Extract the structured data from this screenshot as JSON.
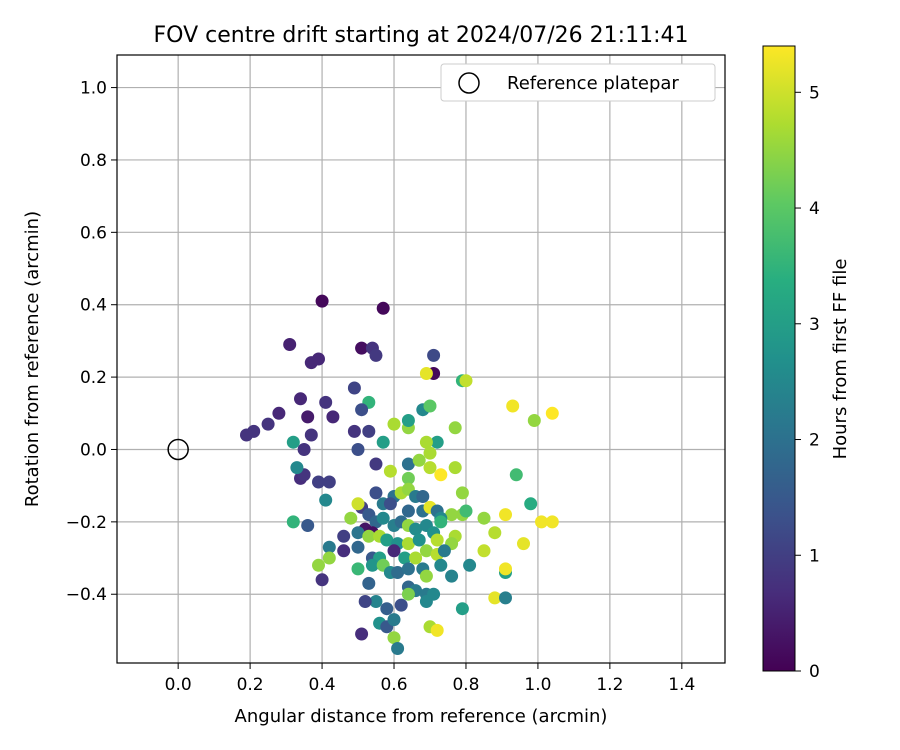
{
  "chart_data": {
    "type": "scatter",
    "title": "FOV centre drift starting at 2024/07/26 21:11:41",
    "xlabel": "Angular distance from reference (arcmin)",
    "ylabel": "Rotation from reference (arcmin)",
    "xlim": [
      -0.17,
      1.52
    ],
    "ylim": [
      -0.59,
      1.09
    ],
    "xticks": [
      0.0,
      0.2,
      0.4,
      0.6,
      0.8,
      1.0,
      1.2,
      1.4
    ],
    "xtick_labels": [
      "0.0",
      "0.2",
      "0.4",
      "0.6",
      "0.8",
      "1.0",
      "1.2",
      "1.4"
    ],
    "yticks": [
      -0.4,
      -0.2,
      0.0,
      0.2,
      0.4,
      0.6,
      0.8,
      1.0
    ],
    "ytick_labels": [
      "−0.4",
      "−0.2",
      "0.0",
      "0.2",
      "0.4",
      "0.6",
      "0.8",
      "1.0"
    ],
    "grid": true,
    "legend": {
      "placement": "top-right",
      "label": "Reference platepar"
    },
    "reference_point": {
      "x": 0.0,
      "y": 0.0
    },
    "colorbar": {
      "label": "Hours from first FF file",
      "range": [
        0,
        5.4
      ],
      "ticks": [
        0,
        1,
        2,
        3,
        4,
        5
      ],
      "tick_labels": [
        "0",
        "1",
        "2",
        "3",
        "4",
        "5"
      ],
      "colormap": "viridis"
    },
    "points": [
      [
        0.4,
        0.41,
        0.1
      ],
      [
        0.57,
        0.39,
        0.1
      ],
      [
        0.31,
        0.29,
        0.5
      ],
      [
        0.51,
        0.28,
        0.2
      ],
      [
        0.54,
        0.28,
        0.8
      ],
      [
        0.37,
        0.24,
        0.6
      ],
      [
        0.39,
        0.25,
        0.6
      ],
      [
        0.55,
        0.26,
        0.9
      ],
      [
        0.71,
        0.26,
        1.2
      ],
      [
        0.71,
        0.21,
        0.1
      ],
      [
        0.69,
        0.21,
        5.2
      ],
      [
        0.79,
        0.19,
        3.5
      ],
      [
        0.8,
        0.19,
        4.9
      ],
      [
        0.49,
        0.17,
        1.1
      ],
      [
        0.34,
        0.14,
        0.6
      ],
      [
        0.41,
        0.13,
        0.8
      ],
      [
        0.53,
        0.13,
        3.5
      ],
      [
        0.28,
        0.1,
        0.6
      ],
      [
        0.36,
        0.09,
        0.4
      ],
      [
        0.43,
        0.09,
        0.6
      ],
      [
        0.51,
        0.11,
        1.3
      ],
      [
        0.93,
        0.12,
        5.3
      ],
      [
        1.04,
        0.1,
        5.4
      ],
      [
        0.68,
        0.11,
        2.5
      ],
      [
        0.7,
        0.12,
        4.0
      ],
      [
        0.25,
        0.07,
        0.8
      ],
      [
        0.21,
        0.05,
        0.8
      ],
      [
        0.19,
        0.04,
        0.8
      ],
      [
        0.37,
        0.04,
        0.8
      ],
      [
        0.49,
        0.05,
        0.8
      ],
      [
        0.53,
        0.05,
        1.0
      ],
      [
        0.6,
        0.07,
        4.7
      ],
      [
        0.64,
        0.06,
        4.5
      ],
      [
        0.64,
        0.08,
        3.0
      ],
      [
        0.99,
        0.08,
        4.5
      ],
      [
        0.77,
        0.06,
        4.5
      ],
      [
        0.32,
        0.02,
        3.0
      ],
      [
        0.57,
        0.02,
        3.0
      ],
      [
        0.72,
        0.02,
        3.0
      ],
      [
        0.35,
        0.0,
        0.8
      ],
      [
        0.5,
        0.0,
        1.3
      ],
      [
        0.69,
        0.02,
        4.7
      ],
      [
        0.7,
        -0.01,
        4.7
      ],
      [
        0.64,
        -0.04,
        2.0
      ],
      [
        0.67,
        -0.03,
        4.5
      ],
      [
        0.34,
        -0.08,
        0.7
      ],
      [
        0.35,
        -0.07,
        0.8
      ],
      [
        0.33,
        -0.05,
        2.5
      ],
      [
        0.39,
        -0.09,
        1.0
      ],
      [
        0.42,
        -0.09,
        1.0
      ],
      [
        0.55,
        -0.04,
        0.9
      ],
      [
        0.59,
        -0.06,
        4.8
      ],
      [
        0.64,
        -0.08,
        4.2
      ],
      [
        0.7,
        -0.05,
        4.8
      ],
      [
        0.73,
        -0.07,
        5.4
      ],
      [
        0.77,
        -0.05,
        4.7
      ],
      [
        0.94,
        -0.07,
        3.7
      ],
      [
        0.55,
        -0.12,
        1.3
      ],
      [
        0.57,
        -0.15,
        2.2
      ],
      [
        0.6,
        -0.13,
        2.0
      ],
      [
        0.62,
        -0.12,
        4.7
      ],
      [
        0.64,
        -0.11,
        4.5
      ],
      [
        0.66,
        -0.13,
        2.2
      ],
      [
        0.68,
        -0.13,
        1.8
      ],
      [
        0.59,
        -0.15,
        1.3
      ],
      [
        0.64,
        -0.17,
        1.8
      ],
      [
        0.68,
        -0.17,
        2.0
      ],
      [
        0.7,
        -0.16,
        5.2
      ],
      [
        0.72,
        -0.17,
        2.0
      ],
      [
        0.51,
        -0.16,
        1.0
      ],
      [
        0.53,
        -0.18,
        1.5
      ],
      [
        0.5,
        -0.15,
        5.0
      ],
      [
        0.79,
        -0.12,
        4.5
      ],
      [
        0.79,
        -0.18,
        4.5
      ],
      [
        0.8,
        -0.17,
        3.7
      ],
      [
        0.76,
        -0.18,
        4.5
      ],
      [
        0.73,
        -0.19,
        2.5
      ],
      [
        0.85,
        -0.19,
        4.5
      ],
      [
        0.91,
        -0.18,
        5.3
      ],
      [
        0.98,
        -0.15,
        3.3
      ],
      [
        1.01,
        -0.2,
        5.3
      ],
      [
        1.04,
        -0.2,
        5.3
      ],
      [
        0.32,
        -0.2,
        3.5
      ],
      [
        0.36,
        -0.21,
        1.5
      ],
      [
        0.41,
        -0.14,
        2.5
      ],
      [
        0.48,
        -0.19,
        4.5
      ],
      [
        0.55,
        -0.2,
        1.8
      ],
      [
        0.57,
        -0.19,
        2.5
      ],
      [
        0.6,
        -0.21,
        2.3
      ],
      [
        0.62,
        -0.2,
        1.9
      ],
      [
        0.64,
        -0.21,
        4.5
      ],
      [
        0.66,
        -0.22,
        2.6
      ],
      [
        0.69,
        -0.21,
        2.5
      ],
      [
        0.71,
        -0.23,
        2.7
      ],
      [
        0.73,
        -0.2,
        3.5
      ],
      [
        0.52,
        -0.22,
        0.3
      ],
      [
        0.54,
        -0.23,
        0.2
      ],
      [
        0.46,
        -0.24,
        1.0
      ],
      [
        0.5,
        -0.23,
        2.1
      ],
      [
        0.53,
        -0.24,
        4.5
      ],
      [
        0.56,
        -0.24,
        4.7
      ],
      [
        0.58,
        -0.25,
        3.0
      ],
      [
        0.61,
        -0.26,
        2.7
      ],
      [
        0.64,
        -0.26,
        4.7
      ],
      [
        0.67,
        -0.25,
        2.7
      ],
      [
        0.72,
        -0.25,
        4.8
      ],
      [
        0.77,
        -0.24,
        4.7
      ],
      [
        0.76,
        -0.26,
        4.5
      ],
      [
        0.88,
        -0.23,
        4.8
      ],
      [
        0.96,
        -0.26,
        5.2
      ],
      [
        0.46,
        -0.28,
        0.7
      ],
      [
        0.42,
        -0.27,
        2.2
      ],
      [
        0.5,
        -0.27,
        1.8
      ],
      [
        0.54,
        -0.3,
        1.5
      ],
      [
        0.56,
        -0.3,
        3.0
      ],
      [
        0.6,
        -0.28,
        0.6
      ],
      [
        0.63,
        -0.3,
        3.0
      ],
      [
        0.66,
        -0.3,
        4.7
      ],
      [
        0.69,
        -0.28,
        4.5
      ],
      [
        0.72,
        -0.29,
        4.8
      ],
      [
        0.74,
        -0.28,
        2.2
      ],
      [
        0.85,
        -0.28,
        4.9
      ],
      [
        0.42,
        -0.3,
        4.5
      ],
      [
        0.39,
        -0.32,
        4.5
      ],
      [
        0.5,
        -0.33,
        3.6
      ],
      [
        0.54,
        -0.32,
        2.8
      ],
      [
        0.57,
        -0.32,
        4.2
      ],
      [
        0.59,
        -0.34,
        2.5
      ],
      [
        0.61,
        -0.34,
        1.9
      ],
      [
        0.64,
        -0.33,
        2.0
      ],
      [
        0.68,
        -0.33,
        2.2
      ],
      [
        0.69,
        -0.35,
        4.5
      ],
      [
        0.73,
        -0.32,
        2.5
      ],
      [
        0.76,
        -0.35,
        2.4
      ],
      [
        0.81,
        -0.32,
        2.5
      ],
      [
        0.91,
        -0.34,
        3.0
      ],
      [
        0.91,
        -0.33,
        5.3
      ],
      [
        0.4,
        -0.36,
        0.8
      ],
      [
        0.53,
        -0.37,
        1.7
      ],
      [
        0.64,
        -0.38,
        1.8
      ],
      [
        0.66,
        -0.39,
        2.2
      ],
      [
        0.69,
        -0.4,
        2.2
      ],
      [
        0.71,
        -0.4,
        2.5
      ],
      [
        0.64,
        -0.4,
        4.3
      ],
      [
        0.55,
        -0.42,
        2.4
      ],
      [
        0.52,
        -0.42,
        1.1
      ],
      [
        0.58,
        -0.44,
        1.6
      ],
      [
        0.62,
        -0.43,
        1.3
      ],
      [
        0.69,
        -0.42,
        2.5
      ],
      [
        0.79,
        -0.44,
        3.0
      ],
      [
        0.88,
        -0.41,
        5.2
      ],
      [
        0.91,
        -0.41,
        2.3
      ],
      [
        0.56,
        -0.48,
        2.7
      ],
      [
        0.58,
        -0.49,
        1.5
      ],
      [
        0.6,
        -0.47,
        2.2
      ],
      [
        0.51,
        -0.51,
        0.7
      ],
      [
        0.7,
        -0.49,
        4.7
      ],
      [
        0.72,
        -0.5,
        5.3
      ],
      [
        0.6,
        -0.52,
        4.5
      ],
      [
        0.61,
        -0.55,
        2.2
      ]
    ]
  }
}
